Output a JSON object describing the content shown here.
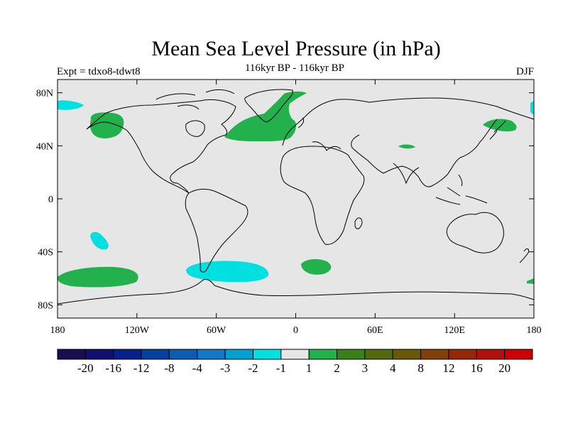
{
  "title": "Mean Sea Level Pressure (in hPa)",
  "subtitle": "116kyr BP - 116kyr BP",
  "left_label": "Expt = tdxo8-tdwt8",
  "right_label": "DJF",
  "map": {
    "projection": "cylindrical-equidistant",
    "lon_range": [
      -180,
      180
    ],
    "lat_range": [
      -90,
      90
    ],
    "background_color": "#e6e6e6",
    "coastline_color": "#000000",
    "x_ticks": [
      {
        "lon": -180,
        "label": "180"
      },
      {
        "lon": -120,
        "label": "120W"
      },
      {
        "lon": -60,
        "label": "60W"
      },
      {
        "lon": 0,
        "label": "0"
      },
      {
        "lon": 60,
        "label": "60E"
      },
      {
        "lon": 120,
        "label": "120E"
      },
      {
        "lon": 180,
        "label": "180"
      }
    ],
    "y_ticks": [
      {
        "lat": 80,
        "label": "80N"
      },
      {
        "lat": 40,
        "label": "40N"
      },
      {
        "lat": 0,
        "label": "0"
      },
      {
        "lat": -40,
        "label": "40S"
      },
      {
        "lat": -80,
        "label": "80S"
      }
    ],
    "anomaly_regions": [
      {
        "name": "north-atlantic",
        "level": "1 to 2",
        "color": "#22b14c"
      },
      {
        "name": "north-pacific",
        "level": "1 to 2",
        "color": "#22b14c"
      },
      {
        "name": "northeast-asia",
        "level": "1 to 2",
        "color": "#22b14c"
      },
      {
        "name": "central-asia",
        "level": "1 to 2",
        "color": "#22b14c"
      },
      {
        "name": "south-pacific",
        "level": "1 to 2",
        "color": "#22b14c"
      },
      {
        "name": "south-atlantic-east",
        "level": "1 to 2",
        "color": "#22b14c"
      },
      {
        "name": "south-atlantic-west",
        "level": "-2 to -1",
        "color": "#00e0e0"
      },
      {
        "name": "south-pacific-subtropics",
        "level": "-2 to -1",
        "color": "#00e0e0"
      },
      {
        "name": "arctic-northwest",
        "level": "-2 to -1",
        "color": "#00e0e0"
      },
      {
        "name": "arctic-northeast",
        "level": "-2 to -1",
        "color": "#00e0e0"
      }
    ]
  },
  "colorbar": {
    "colors": [
      "#1a0d50",
      "#101070",
      "#08208c",
      "#0440a0",
      "#0a5cb4",
      "#1478c8",
      "#00a0d2",
      "#00e0e0",
      "#e6e6e6",
      "#22b14c",
      "#3a8018",
      "#526a0c",
      "#6a5808",
      "#804008",
      "#962808",
      "#b01010",
      "#cc0000"
    ],
    "labels": [
      "-20",
      "-16",
      "-12",
      "-8",
      "-4",
      "-3",
      "-2",
      "-1",
      "1",
      "2",
      "3",
      "4",
      "8",
      "12",
      "16",
      "20"
    ]
  }
}
